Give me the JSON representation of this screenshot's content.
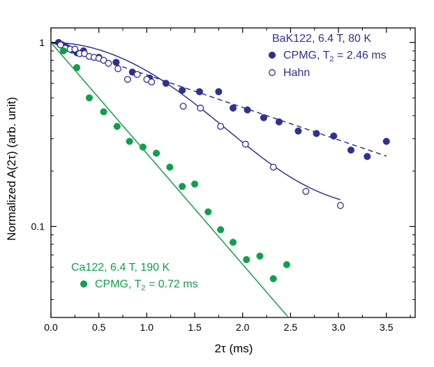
{
  "chart_data": {
    "type": "scatter",
    "title": "",
    "xlabel": "2τ (ms)",
    "ylabel": "Normalized A(2τ) (arb. unit)",
    "xscale": "linear",
    "yscale": "log",
    "xlim": [
      0.0,
      3.8
    ],
    "ylim": [
      0.032,
      1.2
    ],
    "x_ticks": [
      0.0,
      0.5,
      1.0,
      1.5,
      2.0,
      2.5,
      3.0,
      3.5
    ],
    "x_tick_labels": [
      "0.0",
      "0.5",
      "1.0",
      "1.5",
      "2.0",
      "2.5",
      "3.0",
      "3.5"
    ],
    "y_ticks": [
      1,
      0.1
    ],
    "y_tick_labels": [
      "1",
      "0.1"
    ],
    "colors": {
      "blue": "#2e3192",
      "green": "#0fa14a",
      "axis": "#000000"
    },
    "legends": [
      {
        "name": "legend-bak122",
        "title": "BaK122, 6.4 T, 80 K",
        "position": "top-right",
        "color": "#2e3192",
        "entries": [
          {
            "marker": "filled-circle",
            "label": "CPMG, T",
            "subscript": "2",
            "label_suffix": " = 2.46 ms"
          },
          {
            "marker": "open-circle",
            "label": "Hahn",
            "subscript": "",
            "label_suffix": ""
          }
        ]
      },
      {
        "name": "legend-ca122",
        "title": "Ca122, 6.4 T, 190 K",
        "position": "bottom-left",
        "color": "#0fa14a",
        "entries": [
          {
            "marker": "filled-circle",
            "label": "CPMG, T",
            "subscript": "2",
            "label_suffix": " = 0.72 ms"
          }
        ]
      }
    ],
    "series": [
      {
        "name": "BaK122 CPMG",
        "marker": "filled-circle",
        "color": "#2e3192",
        "x": [
          0.08,
          0.12,
          0.15,
          0.18,
          0.22,
          0.27,
          0.34,
          0.5,
          0.68,
          0.85,
          1.03,
          1.2,
          1.37,
          1.55,
          1.75,
          1.9,
          2.05,
          2.22,
          2.38,
          2.58,
          2.77,
          2.95,
          3.13,
          3.3,
          3.5
        ],
        "y": [
          1.0,
          0.97,
          0.95,
          0.93,
          0.91,
          0.88,
          0.9,
          0.83,
          0.78,
          0.69,
          0.64,
          0.6,
          0.55,
          0.54,
          0.54,
          0.44,
          0.43,
          0.39,
          0.37,
          0.33,
          0.32,
          0.31,
          0.26,
          0.24,
          0.29
        ]
      },
      {
        "name": "BaK122 Hahn",
        "marker": "open-circle",
        "color": "#2e3192",
        "x": [
          0.1,
          0.15,
          0.2,
          0.25,
          0.3,
          0.35,
          0.4,
          0.45,
          0.5,
          0.55,
          0.6,
          0.7,
          0.8,
          0.9,
          1.0,
          1.05,
          1.38,
          1.56,
          1.77,
          2.03,
          2.32,
          2.66,
          3.02
        ],
        "y": [
          0.97,
          0.93,
          0.92,
          0.92,
          0.87,
          0.87,
          0.84,
          0.83,
          0.82,
          0.8,
          0.77,
          0.72,
          0.63,
          0.67,
          0.63,
          0.61,
          0.45,
          0.44,
          0.35,
          0.28,
          0.21,
          0.155,
          0.13
        ]
      },
      {
        "name": "Ca122 CPMG",
        "marker": "filled-circle",
        "color": "#0fa14a",
        "x": [
          0.13,
          0.27,
          0.4,
          0.55,
          0.69,
          0.82,
          0.96,
          1.1,
          1.24,
          1.37,
          1.5,
          1.64,
          1.77,
          1.9,
          2.04,
          2.18,
          2.32,
          2.46
        ],
        "y": [
          0.9,
          0.73,
          0.5,
          0.42,
          0.35,
          0.29,
          0.27,
          0.25,
          0.21,
          0.165,
          0.17,
          0.12,
          0.096,
          0.082,
          0.066,
          0.069,
          0.052,
          0.062
        ]
      }
    ],
    "fits": [
      {
        "name": "BaK122 CPMG fit",
        "style": "dashed",
        "color": "#2e3192",
        "x_range": [
          0.0,
          3.5
        ],
        "T2": 2.46,
        "form": "exp(-x/T2)"
      },
      {
        "name": "BaK122 Hahn fit",
        "style": "solid",
        "color": "#2e3192",
        "x_range": [
          0.0,
          3.02
        ],
        "T2": 1.55,
        "form": "0.12 + 0.88*exp(-(x/T2)^2)"
      },
      {
        "name": "Ca122 CPMG fit",
        "style": "solid",
        "color": "#0fa14a",
        "x_range": [
          0.0,
          2.47
        ],
        "T2": 0.72,
        "form": "exp(-x/T2)"
      }
    ]
  }
}
